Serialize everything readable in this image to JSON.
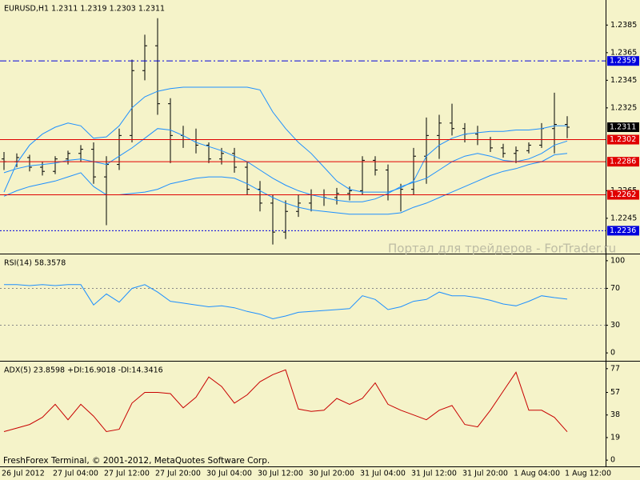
{
  "chart_data": [
    {
      "type": "ohlc",
      "title": "EURUSD,H1  1.2311 1.2319 1.2303 1.2311",
      "color": "#000000",
      "categories": [
        "26 Jul 2012",
        null,
        null,
        null,
        "27 Jul 04:00",
        null,
        null,
        null,
        "27 Jul 12:00",
        null,
        null,
        null,
        "27 Jul 20:00",
        null,
        null,
        null,
        "30 Jul 04:00",
        null,
        null,
        null,
        "30 Jul 12:00",
        null,
        null,
        null,
        "30 Jul 20:00",
        null,
        null,
        null,
        "31 Jul 04:00",
        null,
        null,
        null,
        "31 Jul 12:00",
        null,
        null,
        null,
        "31 Jul 20:00",
        null,
        null,
        null,
        "1 Aug 04:00",
        null,
        null,
        null,
        "1 Aug 12:00"
      ],
      "open": [
        1.2288,
        1.2286,
        1.2289,
        1.2282,
        1.2279,
        1.2288,
        1.2292,
        1.2295,
        1.2275,
        1.2284,
        1.2305,
        1.2352,
        1.237,
        1.2328,
        1.2305,
        1.2302,
        1.2298,
        1.2288,
        1.2292,
        1.2282,
        1.2266,
        1.2256,
        1.2235,
        1.225,
        1.2256,
        1.2262,
        1.226,
        1.2263,
        1.2265,
        1.2287,
        1.228,
        1.2262,
        1.2266,
        1.229,
        1.2305,
        1.2314,
        1.231,
        1.2306,
        1.2302,
        1.2296,
        1.2292,
        1.2294,
        1.2298,
        1.231,
        1.2313
      ],
      "high": [
        1.2293,
        1.2292,
        1.2291,
        1.2286,
        1.229,
        1.2294,
        1.2298,
        1.23,
        1.229,
        1.231,
        1.236,
        1.2378,
        1.239,
        1.2332,
        1.2312,
        1.231,
        1.23,
        1.2296,
        1.2296,
        1.2286,
        1.2272,
        1.2262,
        1.2258,
        1.2262,
        1.2266,
        1.2266,
        1.2267,
        1.2268,
        1.229,
        1.229,
        1.2284,
        1.227,
        1.2296,
        1.2318,
        1.232,
        1.2328,
        1.2314,
        1.2312,
        1.2304,
        1.2299,
        1.2297,
        1.23,
        1.2314,
        1.2336,
        1.2319
      ],
      "low": [
        1.228,
        1.2282,
        1.2279,
        1.2276,
        1.2277,
        1.2284,
        1.2286,
        1.227,
        1.224,
        1.228,
        1.23,
        1.2345,
        1.232,
        1.2285,
        1.2296,
        1.2292,
        1.2285,
        1.2284,
        1.2278,
        1.2262,
        1.225,
        1.2226,
        1.223,
        1.2246,
        1.225,
        1.2254,
        1.2255,
        1.2258,
        1.2262,
        1.2276,
        1.2258,
        1.225,
        1.2262,
        1.227,
        1.2288,
        1.2305,
        1.23,
        1.2298,
        1.2293,
        1.2289,
        1.2285,
        1.2292,
        1.2296,
        1.2292,
        1.2303
      ],
      "close": [
        1.2286,
        1.2289,
        1.2282,
        1.2279,
        1.2288,
        1.2292,
        1.2295,
        1.2275,
        1.2284,
        1.2305,
        1.2352,
        1.237,
        1.2328,
        1.2305,
        1.2302,
        1.2298,
        1.2288,
        1.2292,
        1.2282,
        1.2266,
        1.2256,
        1.2235,
        1.225,
        1.2256,
        1.2262,
        1.226,
        1.2263,
        1.2265,
        1.2287,
        1.228,
        1.2262,
        1.2266,
        1.229,
        1.2305,
        1.2314,
        1.231,
        1.2306,
        1.2302,
        1.2296,
        1.2292,
        1.2294,
        1.2298,
        1.231,
        1.2313,
        1.2311
      ],
      "bands": {
        "color": "#1e90ff",
        "upper": [
          1.2264,
          1.2285,
          1.2298,
          1.2306,
          1.2311,
          1.2314,
          1.2312,
          1.2303,
          1.2304,
          1.2312,
          1.2325,
          1.2333,
          1.2337,
          1.2339,
          1.234,
          1.234,
          1.234,
          1.234,
          1.234,
          1.234,
          1.2338,
          1.2322,
          1.231,
          1.23,
          1.2292,
          1.2282,
          1.2272,
          1.2266,
          1.2264,
          1.2264,
          1.2264,
          1.2267,
          1.2272,
          1.229,
          1.2298,
          1.2303,
          1.2306,
          1.2307,
          1.2308,
          1.2308,
          1.2309,
          1.2309,
          1.231,
          1.2312,
          1.2312
        ],
        "middle": [
          1.2278,
          1.2281,
          1.2283,
          1.2284,
          1.2285,
          1.2287,
          1.2288,
          1.2286,
          1.2284,
          1.229,
          1.2296,
          1.2303,
          1.231,
          1.2309,
          1.2305,
          1.23,
          1.2297,
          1.2294,
          1.229,
          1.2286,
          1.228,
          1.2274,
          1.2269,
          1.2265,
          1.2262,
          1.226,
          1.2258,
          1.2257,
          1.2257,
          1.2259,
          1.2263,
          1.2268,
          1.2271,
          1.2274,
          1.228,
          1.2286,
          1.229,
          1.2292,
          1.229,
          1.2287,
          1.2286,
          1.2288,
          1.2292,
          1.2298,
          1.2301
        ],
        "lower": [
          1.2261,
          1.2265,
          1.2268,
          1.227,
          1.2272,
          1.2275,
          1.2278,
          1.2268,
          1.2262,
          1.2262,
          1.2263,
          1.2264,
          1.2266,
          1.227,
          1.2272,
          1.2274,
          1.2275,
          1.2275,
          1.2274,
          1.227,
          1.2265,
          1.226,
          1.2256,
          1.2253,
          1.2251,
          1.225,
          1.2249,
          1.2248,
          1.2248,
          1.2248,
          1.2248,
          1.2249,
          1.2253,
          1.2256,
          1.226,
          1.2264,
          1.2268,
          1.2272,
          1.2276,
          1.2279,
          1.2281,
          1.2284,
          1.2286,
          1.2291,
          1.2292
        ]
      },
      "levels": [
        {
          "value": 1.2359,
          "color": "#0000dd",
          "style": "dashdot"
        },
        {
          "value": 1.2302,
          "color": "#e00000",
          "style": "solid"
        },
        {
          "value": 1.2286,
          "color": "#e00000",
          "style": "solid"
        },
        {
          "value": 1.2262,
          "color": "#e00000",
          "style": "solid"
        },
        {
          "value": 1.2236,
          "color": "#0000dd",
          "style": "dotted"
        }
      ],
      "ylim": [
        1.222,
        1.2402
      ],
      "yticks": [
        1.2385,
        1.2365,
        1.2345,
        1.2325,
        1.2265,
        1.2245
      ]
    },
    {
      "type": "line",
      "title": "RSI(14) 58.3578",
      "color": "#1e90ff",
      "values": [
        74,
        74,
        73,
        74,
        73,
        74,
        74,
        52,
        64,
        55,
        70,
        74,
        66,
        56,
        54,
        52,
        50,
        51,
        49,
        45,
        42,
        37,
        40,
        44,
        45,
        46,
        47,
        48,
        62,
        58,
        47,
        50,
        56,
        58,
        66,
        62,
        62,
        60,
        57,
        53,
        51,
        56,
        62,
        60,
        58.36
      ],
      "levels": [
        70,
        30
      ],
      "ylim": [
        -7.7,
        105.1
      ],
      "yticks": [
        100,
        70,
        30,
        0
      ]
    },
    {
      "type": "line",
      "title": "ADX(5) 23.8598 +DI:16.9018 -DI:14.3416",
      "color": "#c80000",
      "values": [
        24,
        27,
        30,
        36,
        47,
        34,
        47,
        37,
        24,
        26,
        48,
        57,
        57,
        56,
        44,
        53,
        70,
        62,
        48,
        55,
        66,
        72,
        76,
        43,
        41,
        42,
        52,
        47,
        52,
        65,
        47,
        42,
        38,
        34,
        42,
        46,
        30,
        28,
        42,
        58,
        74,
        42,
        42,
        36,
        23.86
      ],
      "levels": [],
      "ylim": [
        -4.6,
        81.6
      ],
      "yticks": [
        77,
        57,
        38,
        19,
        0
      ]
    }
  ],
  "watermark": "Портал для трейдеров - ForTrader.ru",
  "footer": "FreshForex Terminal, © 2001-2012, MetaQuotes Software Corp."
}
